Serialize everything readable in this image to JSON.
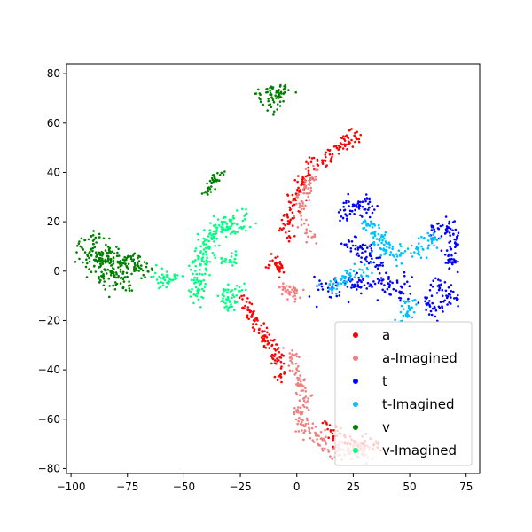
{
  "chart_data": {
    "type": "scatter",
    "title": "",
    "xlabel": "",
    "ylabel": "",
    "xlim": [
      -102,
      81
    ],
    "ylim": [
      -82,
      84
    ],
    "xticks": [
      -100,
      -75,
      -50,
      -25,
      0,
      25,
      50,
      75
    ],
    "yticks": [
      -80,
      -60,
      -40,
      -20,
      0,
      20,
      40,
      60,
      80
    ],
    "grid": false,
    "legend_position": "lower-right",
    "series": [
      {
        "name": "a",
        "color": "#ff0000",
        "clusters": [
          {
            "path": [
              [
                -25,
                -10
              ],
              [
                -20,
                -18
              ],
              [
                -15,
                -25
              ],
              [
                -10,
                -32
              ],
              [
                -8,
                -38
              ],
              [
                -7,
                -44
              ]
            ],
            "spread": 1.5,
            "count": 120
          },
          {
            "path": [
              [
                -12,
                5
              ],
              [
                -8,
                3
              ],
              [
                -6,
                0
              ]
            ],
            "spread": 1.4,
            "count": 35
          },
          {
            "path": [
              [
                -5,
                14
              ],
              [
                -3,
                22
              ],
              [
                0,
                32
              ],
              [
                6,
                40
              ],
              [
                12,
                45
              ],
              [
                18,
                50
              ],
              [
                24,
                54
              ],
              [
                28,
                55
              ]
            ],
            "spread": 1.6,
            "count": 160
          },
          {
            "path": [
              [
                12,
                -62
              ],
              [
                18,
                -66
              ],
              [
                24,
                -70
              ],
              [
                30,
                -71
              ],
              [
                36,
                -70
              ]
            ],
            "spread": 1.6,
            "count": 70
          }
        ]
      },
      {
        "name": "a-Imagined",
        "color": "#f08080",
        "clusters": [
          {
            "path": [
              [
                -6,
                -7
              ],
              [
                -3,
                -9
              ],
              [
                0,
                -8
              ]
            ],
            "spread": 1.6,
            "count": 40
          },
          {
            "path": [
              [
                -3,
                -33
              ],
              [
                0,
                -40
              ],
              [
                2,
                -46
              ],
              [
                3,
                -52
              ],
              [
                0,
                -58
              ],
              [
                4,
                -64
              ],
              [
                10,
                -68
              ],
              [
                18,
                -72
              ],
              [
                26,
                -73
              ],
              [
                32,
                -72
              ]
            ],
            "spread": 1.8,
            "count": 220
          },
          {
            "path": [
              [
                8,
                42
              ],
              [
                5,
                35
              ],
              [
                2,
                28
              ],
              [
                3,
                20
              ],
              [
                6,
                13
              ]
            ],
            "spread": 1.6,
            "count": 70
          }
        ]
      },
      {
        "name": "t",
        "color": "#0000ff",
        "clusters": [
          {
            "path": [
              [
                20,
                22
              ],
              [
                24,
                26
              ],
              [
                30,
                28
              ],
              [
                34,
                24
              ]
            ],
            "spread": 2.0,
            "count": 60
          },
          {
            "path": [
              [
                22,
                12
              ],
              [
                28,
                8
              ],
              [
                33,
                5
              ],
              [
                38,
                2
              ]
            ],
            "spread": 2.2,
            "count": 60
          },
          {
            "path": [
              [
                10,
                -6
              ],
              [
                18,
                -8
              ],
              [
                26,
                -6
              ],
              [
                34,
                -4
              ],
              [
                40,
                -6
              ],
              [
                46,
                -8
              ],
              [
                50,
                -4
              ]
            ],
            "spread": 2.2,
            "count": 110
          },
          {
            "path": [
              [
                60,
                18
              ],
              [
                66,
                18
              ],
              [
                70,
                14
              ],
              [
                69,
                8
              ],
              [
                68,
                2
              ]
            ],
            "spread": 1.8,
            "count": 90
          },
          {
            "path": [
              [
                62,
                -5
              ],
              [
                66,
                -10
              ],
              [
                70,
                -12
              ]
            ],
            "spread": 2.0,
            "count": 40
          },
          {
            "path": [
              [
                58,
                -12
              ],
              [
                60,
                -16
              ],
              [
                64,
                -16
              ]
            ],
            "spread": 1.8,
            "count": 30
          }
        ]
      },
      {
        "name": "t-Imagined",
        "color": "#00bfff",
        "clusters": [
          {
            "path": [
              [
                30,
                20
              ],
              [
                34,
                16
              ],
              [
                38,
                10
              ],
              [
                44,
                6
              ],
              [
                50,
                8
              ],
              [
                56,
                10
              ],
              [
                62,
                14
              ]
            ],
            "spread": 1.8,
            "count": 140
          },
          {
            "path": [
              [
                14,
                -8
              ],
              [
                20,
                -4
              ],
              [
                26,
                -1
              ],
              [
                32,
                2
              ]
            ],
            "spread": 1.6,
            "count": 60
          },
          {
            "path": [
              [
                46,
                -18
              ],
              [
                50,
                -16
              ],
              [
                52,
                -12
              ]
            ],
            "spread": 1.6,
            "count": 35
          }
        ]
      },
      {
        "name": "v",
        "color": "#008000",
        "clusters": [
          {
            "path": [
              [
                -96,
                10
              ],
              [
                -92,
                12
              ],
              [
                -88,
                14
              ]
            ],
            "spread": 2.0,
            "count": 30
          },
          {
            "path": [
              [
                -92,
                4
              ],
              [
                -85,
                6
              ],
              [
                -78,
                4
              ],
              [
                -72,
                2
              ],
              [
                -68,
                4
              ]
            ],
            "spread": 3.0,
            "count": 180
          },
          {
            "path": [
              [
                -88,
                -2
              ],
              [
                -80,
                -3
              ],
              [
                -75,
                -4
              ]
            ],
            "spread": 2.5,
            "count": 60
          },
          {
            "path": [
              [
                -40,
                32
              ],
              [
                -38,
                36
              ],
              [
                -35,
                38
              ],
              [
                -32,
                40
              ]
            ],
            "spread": 1.2,
            "count": 35
          },
          {
            "path": [
              [
                -16,
                70
              ],
              [
                -12,
                73
              ],
              [
                -8,
                74
              ],
              [
                -6,
                72
              ],
              [
                -12,
                66
              ]
            ],
            "spread": 1.6,
            "count": 70
          }
        ]
      },
      {
        "name": "v-Imagined",
        "color": "#00ff80",
        "clusters": [
          {
            "path": [
              [
                -62,
                -2
              ],
              [
                -58,
                -4
              ],
              [
                -52,
                -2
              ]
            ],
            "spread": 1.6,
            "count": 40
          },
          {
            "path": [
              [
                -45,
                -12
              ],
              [
                -44,
                -4
              ],
              [
                -42,
                2
              ],
              [
                -40,
                10
              ],
              [
                -38,
                16
              ],
              [
                -34,
                18
              ],
              [
                -28,
                18
              ],
              [
                -24,
                22
              ]
            ],
            "spread": 2.2,
            "count": 200
          },
          {
            "path": [
              [
                -34,
                -10
              ],
              [
                -30,
                -14
              ],
              [
                -28,
                -8
              ],
              [
                -24,
                -6
              ]
            ],
            "spread": 1.6,
            "count": 50
          },
          {
            "path": [
              [
                -32,
                4
              ],
              [
                -28,
                4
              ],
              [
                -26,
                6
              ]
            ],
            "spread": 1.4,
            "count": 25
          }
        ]
      }
    ]
  }
}
